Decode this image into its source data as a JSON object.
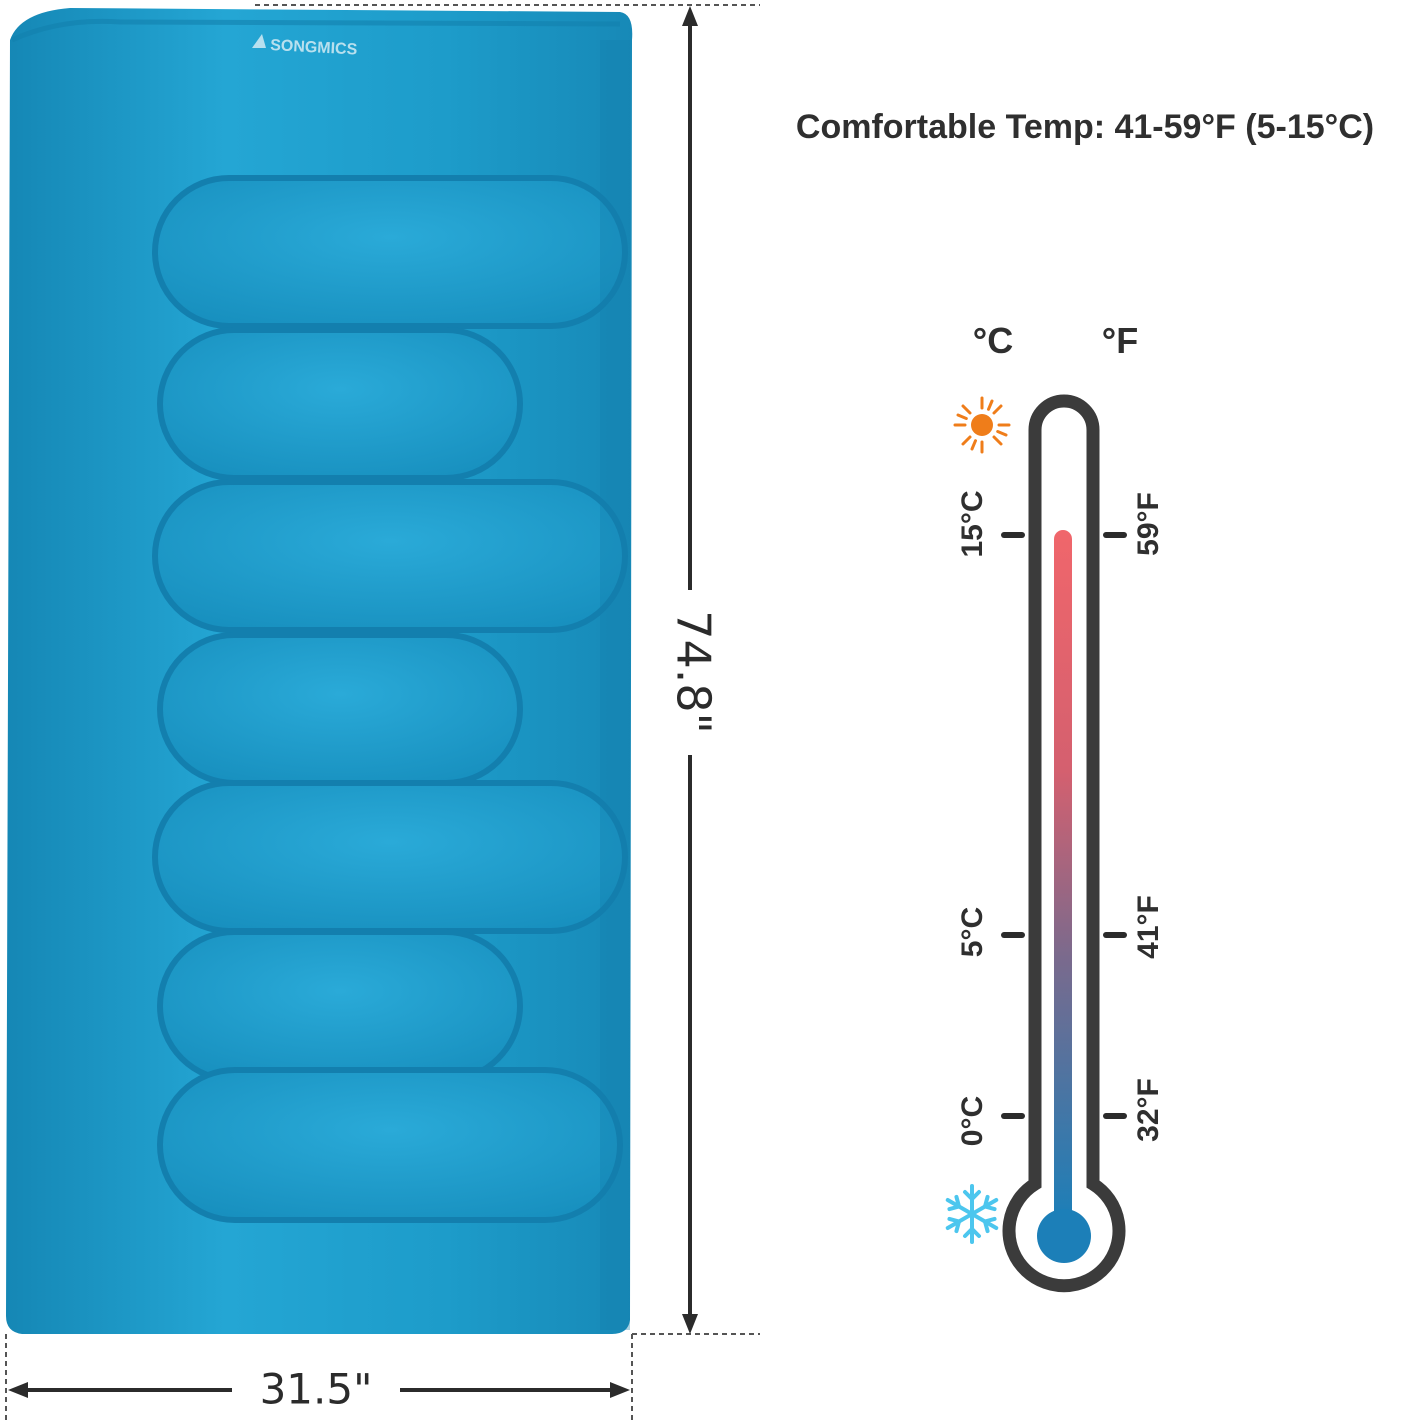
{
  "product": {
    "brand": "SONGMICS",
    "colors": {
      "bag": "#1b9ccb",
      "bag_shadow": "#1584b0",
      "bag_highlight": "#3db7e3"
    }
  },
  "dimensions": {
    "length": "74.8\"",
    "width": "31.5\""
  },
  "comfort": {
    "headline": "Comfortable Temp: 41-59°F (5-15°C)"
  },
  "thermometer": {
    "celsius_label": "°C",
    "fahrenheit_label": "°F",
    "warm_icon": "sun-icon",
    "cold_icon": "snowflake-icon",
    "ticks": [
      {
        "c": "15°C",
        "f": "59°F"
      },
      {
        "c": "5°C",
        "f": "41°F"
      },
      {
        "c": "0°C",
        "f": "32°F"
      }
    ],
    "colors": {
      "hot": "#f0666b",
      "cold": "#1c7fb8",
      "sun": "#ef7d1a",
      "snow": "#4cc6ee",
      "frame": "#3b3b3b"
    }
  }
}
